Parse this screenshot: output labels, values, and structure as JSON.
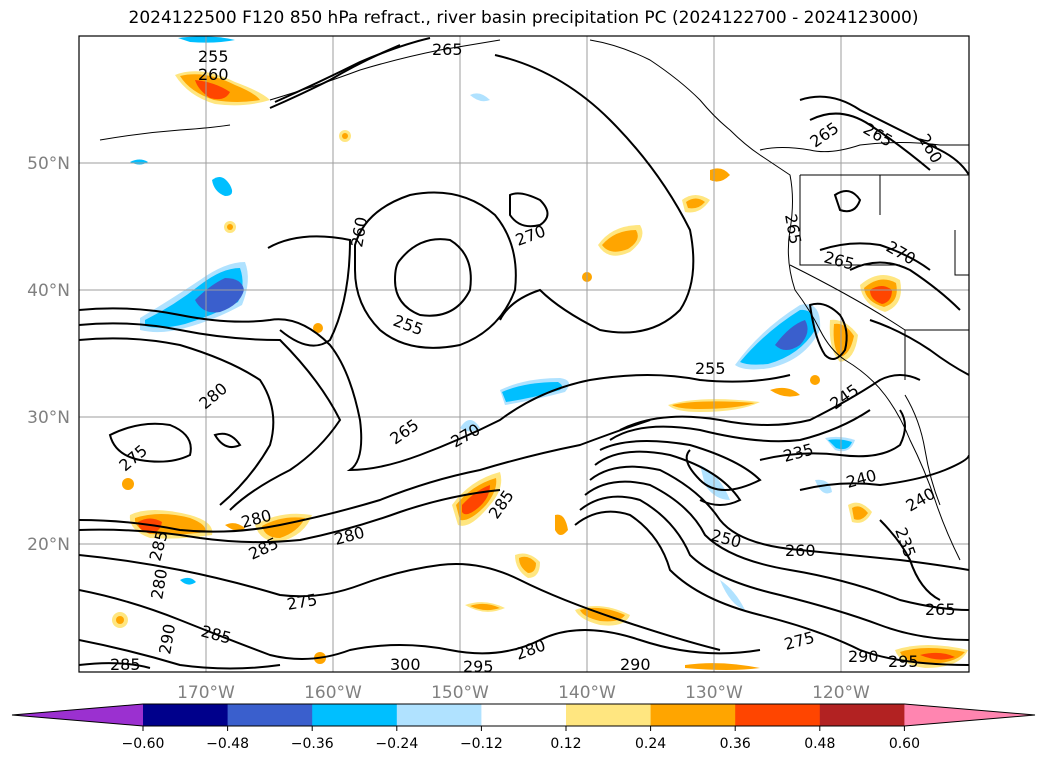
{
  "title": "2024122500 F120 850 hPa refract., river basin precipitation PC (2024122700 - 2024123000)",
  "lat_labels": [
    "50°N",
    "40°N",
    "30°N",
    "20°N"
  ],
  "lon_labels": [
    "170°W",
    "160°W",
    "150°W",
    "140°W",
    "130°W",
    "120°W"
  ],
  "contour_labels": [
    "255",
    "260",
    "265",
    "265",
    "265",
    "260",
    "270",
    "260",
    "270",
    "255",
    "265",
    "255",
    "265",
    "280",
    "275",
    "280",
    "280",
    "265",
    "270",
    "285",
    "250",
    "260",
    "235",
    "240",
    "245",
    "240",
    "235",
    "285",
    "285",
    "275",
    "280",
    "290",
    "285",
    "300",
    "295",
    "280",
    "290",
    "275",
    "290",
    "295",
    "285",
    "265"
  ],
  "colorbar": {
    "tick_labels": [
      "−0.60",
      "−0.48",
      "−0.36",
      "−0.24",
      "−0.12",
      "0.12",
      "0.24",
      "0.36",
      "0.48",
      "0.60"
    ],
    "colors": [
      "#9b30d0",
      "#00008b",
      "#3a5fcd",
      "#00bfff",
      "#b0e2ff",
      "#ffffff",
      "#ffe680",
      "#ffa500",
      "#ff4500",
      "#b22222",
      "#ff85b0"
    ]
  }
}
